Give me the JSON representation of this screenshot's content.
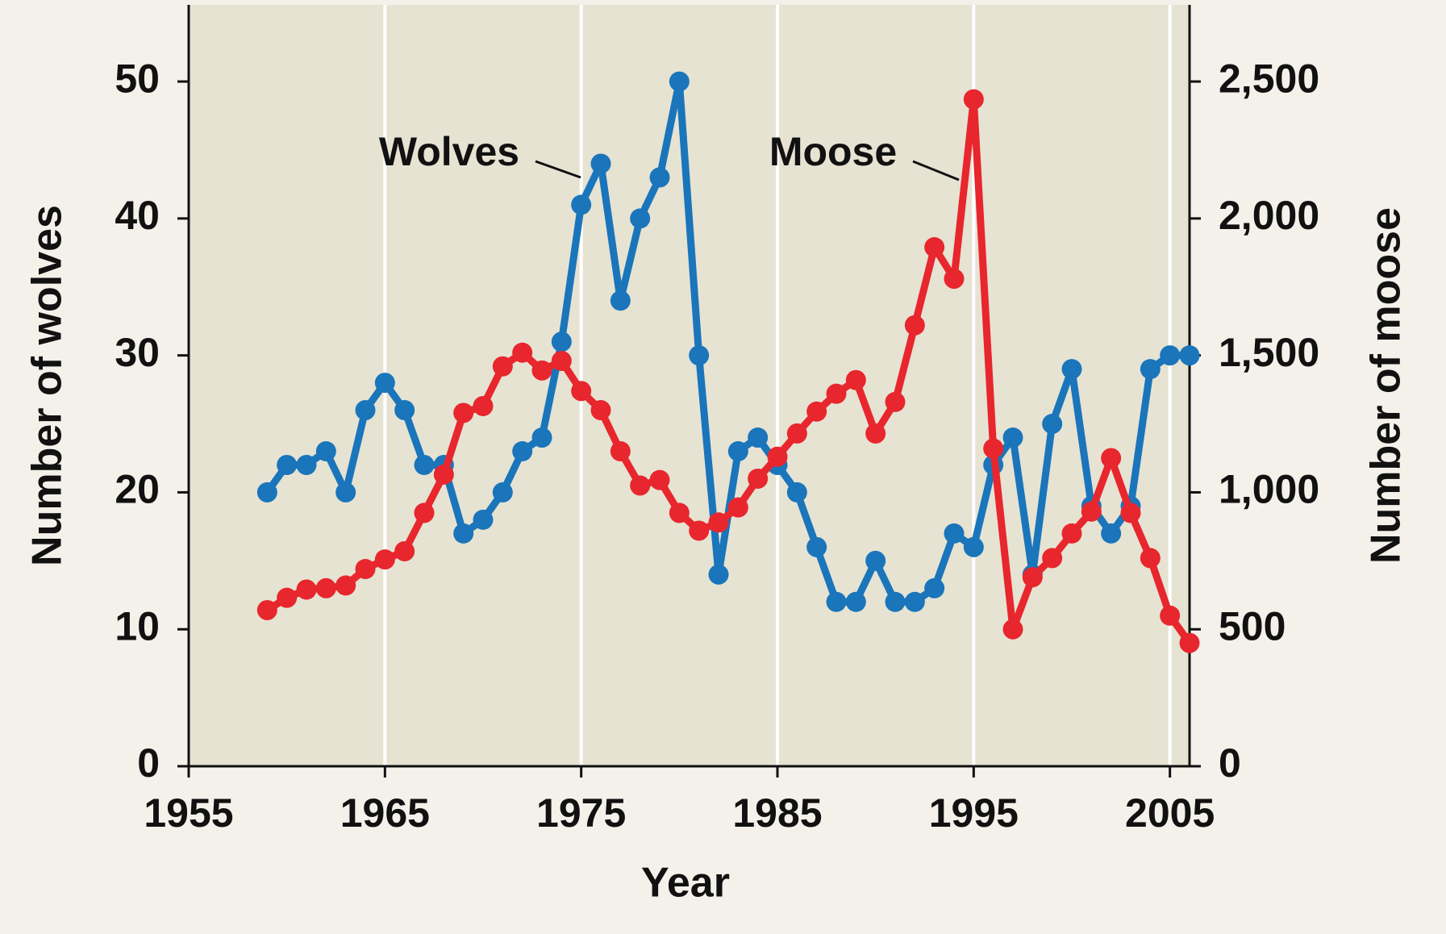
{
  "chart_data": {
    "type": "line",
    "x_label": "Year",
    "y_label": "Number of wolves",
    "y2_label": "Number of moose",
    "x": [
      1959,
      1960,
      1961,
      1962,
      1963,
      1964,
      1965,
      1966,
      1967,
      1968,
      1969,
      1970,
      1971,
      1972,
      1973,
      1974,
      1975,
      1976,
      1977,
      1978,
      1979,
      1980,
      1981,
      1982,
      1983,
      1984,
      1985,
      1986,
      1987,
      1988,
      1989,
      1990,
      1991,
      1992,
      1993,
      1994,
      1995,
      1996,
      1997,
      1998,
      1999,
      2000,
      2001,
      2002,
      2003,
      2004,
      2005,
      2006
    ],
    "series": [
      {
        "name": "Wolves",
        "color": "#1a75bb",
        "axis": "y",
        "values": [
          20,
          22,
          22,
          23,
          20,
          26,
          28,
          26,
          22,
          22,
          17,
          18,
          20,
          23,
          24,
          31,
          41,
          44,
          34,
          40,
          43,
          50,
          30,
          14,
          23,
          24,
          22,
          20,
          16,
          12,
          12,
          15,
          12,
          12,
          13,
          17,
          16,
          22,
          24,
          14,
          25,
          29,
          19,
          17,
          19,
          29,
          30,
          30
        ]
      },
      {
        "name": "Moose",
        "color": "#e8262d",
        "axis": "y2",
        "values": [
          570,
          615,
          645,
          650,
          660,
          720,
          755,
          785,
          925,
          1065,
          1290,
          1315,
          1460,
          1510,
          1445,
          1480,
          1370,
          1300,
          1150,
          1025,
          1045,
          925,
          860,
          890,
          945,
          1050,
          1130,
          1215,
          1295,
          1360,
          1410,
          1215,
          1330,
          1610,
          1895,
          1780,
          2435,
          1160,
          500,
          690,
          760,
          850,
          930,
          1125,
          925,
          760,
          550,
          450
        ]
      }
    ],
    "xlim": [
      1955,
      2006
    ],
    "xticks": [
      1955,
      1965,
      1975,
      1985,
      1995,
      2005
    ],
    "ylim": [
      0,
      55.6
    ],
    "yticks": [
      0,
      10,
      20,
      30,
      40,
      50
    ],
    "y2lim": [
      0,
      2780
    ],
    "y2ticks": [
      0,
      500,
      {
        "value": 1000,
        "label": "1,000"
      },
      {
        "value": 1500,
        "label": "1,500"
      },
      {
        "value": 2000,
        "label": "2,000"
      },
      {
        "value": 2500,
        "label": "2,500"
      }
    ],
    "grid": "x"
  }
}
